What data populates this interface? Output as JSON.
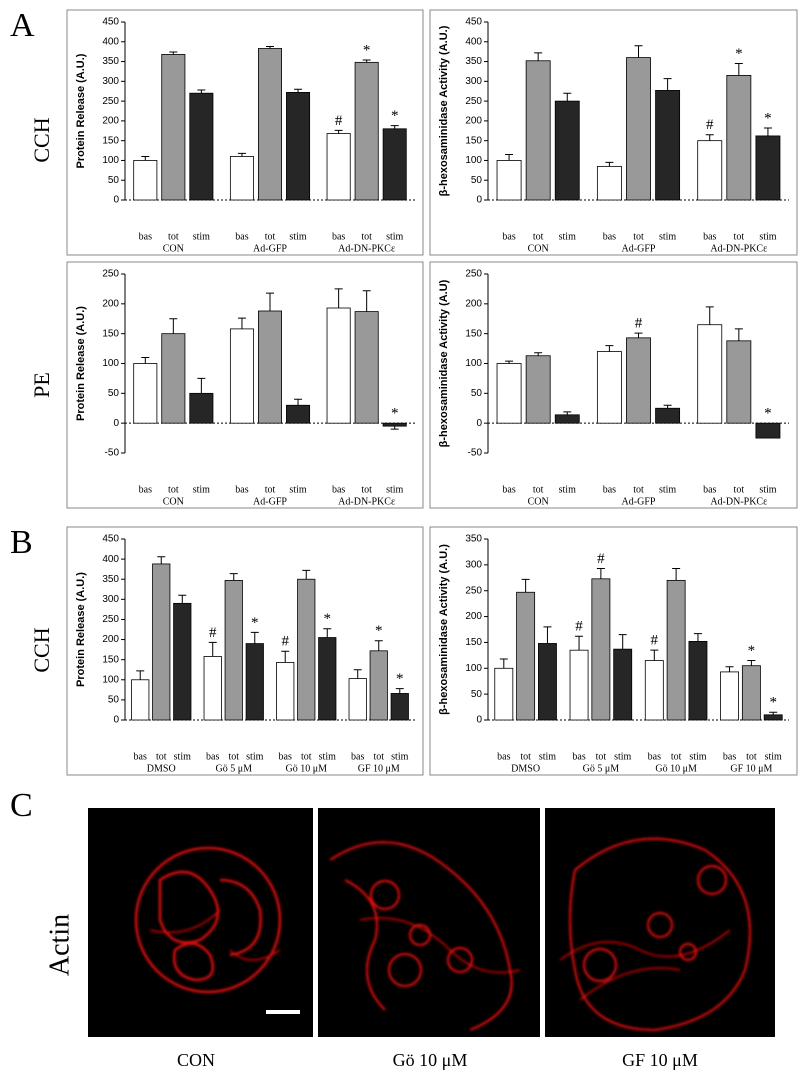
{
  "panels": [
    "A",
    "B",
    "C"
  ],
  "row_labels": [
    "CCH",
    "PE",
    "CCH",
    "Actin"
  ],
  "image_captions": [
    "CON",
    "Gö 10 μM",
    "GF 10 μM"
  ],
  "chart_data": [
    {
      "type": "bar",
      "y_label": "Protein Release  (A.U.)",
      "categories": [
        "CON",
        "Ad-GFP",
        "Ad-DN-PKCε"
      ],
      "ylim": [
        0,
        450
      ],
      "yticks": [
        0,
        50,
        100,
        150,
        200,
        250,
        300,
        350,
        400,
        450
      ],
      "series": [
        {
          "name": "bas",
          "color": "#ffffff",
          "values": [
            100,
            110,
            168
          ],
          "errors": [
            10,
            8,
            8
          ],
          "annotations": [
            null,
            null,
            "#"
          ]
        },
        {
          "name": "tot",
          "color": "#999999",
          "values": [
            368,
            383,
            348
          ],
          "errors": [
            6,
            5,
            6
          ],
          "annotations": [
            null,
            null,
            "*"
          ]
        },
        {
          "name": "stim",
          "color": "#262626",
          "values": [
            270,
            272,
            180
          ],
          "errors": [
            8,
            8,
            8
          ],
          "annotations": [
            null,
            null,
            "*"
          ]
        }
      ]
    },
    {
      "type": "bar",
      "y_label": "β-hexosaminidase Activity (A.U.)",
      "categories": [
        "CON",
        "Ad-GFP",
        "Ad-DN-PKCε"
      ],
      "ylim": [
        0,
        450
      ],
      "yticks": [
        0,
        50,
        100,
        150,
        200,
        250,
        300,
        350,
        400,
        450
      ],
      "series": [
        {
          "name": "bas",
          "color": "#ffffff",
          "values": [
            100,
            85,
            150
          ],
          "errors": [
            15,
            10,
            15
          ],
          "annotations": [
            null,
            null,
            "#"
          ]
        },
        {
          "name": "tot",
          "color": "#999999",
          "values": [
            352,
            360,
            315
          ],
          "errors": [
            20,
            30,
            30
          ],
          "annotations": [
            null,
            null,
            "*"
          ]
        },
        {
          "name": "stim",
          "color": "#262626",
          "values": [
            250,
            277,
            162
          ],
          "errors": [
            20,
            30,
            20
          ],
          "annotations": [
            null,
            null,
            "*"
          ]
        }
      ]
    },
    {
      "type": "bar",
      "y_label": "Protein Release  (A.U.)",
      "categories": [
        "CON",
        "Ad-GFP",
        "Ad-DN-PKCε"
      ],
      "ylim": [
        -50,
        250
      ],
      "yticks": [
        -50,
        0,
        50,
        100,
        150,
        200,
        250
      ],
      "series": [
        {
          "name": "bas",
          "color": "#ffffff",
          "values": [
            100,
            158,
            193
          ],
          "errors": [
            10,
            18,
            32
          ],
          "annotations": [
            null,
            null,
            null
          ]
        },
        {
          "name": "tot",
          "color": "#999999",
          "values": [
            150,
            188,
            187
          ],
          "errors": [
            25,
            30,
            35
          ],
          "annotations": [
            null,
            null,
            null
          ]
        },
        {
          "name": "stim",
          "color": "#262626",
          "values": [
            50,
            30,
            -5
          ],
          "errors": [
            25,
            10,
            5
          ],
          "annotations": [
            null,
            null,
            "*"
          ]
        }
      ]
    },
    {
      "type": "bar",
      "y_label": "β-hexosaminidase Activity (A.U)",
      "categories": [
        "CON",
        "Ad-GFP",
        "Ad-DN-PKCε"
      ],
      "ylim": [
        -50,
        250
      ],
      "yticks": [
        -50,
        0,
        50,
        100,
        150,
        200,
        250
      ],
      "series": [
        {
          "name": "bas",
          "color": "#ffffff",
          "values": [
            100,
            120,
            165
          ],
          "errors": [
            4,
            10,
            30
          ],
          "annotations": [
            null,
            null,
            null
          ]
        },
        {
          "name": "tot",
          "color": "#999999",
          "values": [
            113,
            143,
            138
          ],
          "errors": [
            5,
            8,
            20
          ],
          "annotations": [
            null,
            "#",
            null
          ]
        },
        {
          "name": "stim",
          "color": "#262626",
          "values": [
            14,
            25,
            -25
          ],
          "errors": [
            5,
            5,
            null
          ],
          "annotations": [
            null,
            null,
            "*"
          ]
        }
      ]
    },
    {
      "type": "bar",
      "y_label": "Protein Release  (A.U.)",
      "categories": [
        "DMSO",
        "Gö 5 μM",
        "Gö 10 μM",
        "GF 10 μM"
      ],
      "ylim": [
        0,
        450
      ],
      "yticks": [
        0,
        50,
        100,
        150,
        200,
        250,
        300,
        350,
        400,
        450
      ],
      "series": [
        {
          "name": "bas",
          "color": "#ffffff",
          "values": [
            100,
            158,
            143,
            103
          ],
          "errors": [
            22,
            35,
            28,
            22
          ],
          "annotations": [
            null,
            "#",
            "#",
            null
          ]
        },
        {
          "name": "tot",
          "color": "#999999",
          "values": [
            388,
            347,
            350,
            172
          ],
          "errors": [
            18,
            17,
            22,
            25
          ],
          "annotations": [
            null,
            null,
            null,
            "*"
          ]
        },
        {
          "name": "stim",
          "color": "#262626",
          "values": [
            290,
            190,
            205,
            66
          ],
          "errors": [
            20,
            28,
            22,
            12
          ],
          "annotations": [
            null,
            "*",
            "*",
            "*"
          ]
        }
      ]
    },
    {
      "type": "bar",
      "y_label": "β-hexosaminidase Activity (A.U.)",
      "categories": [
        "DMSO",
        "Gö 5 μM",
        "Gö 10 μM",
        "GF 10 μM"
      ],
      "ylim": [
        0,
        350
      ],
      "yticks": [
        0,
        50,
        100,
        150,
        200,
        250,
        300,
        350
      ],
      "series": [
        {
          "name": "bas",
          "color": "#ffffff",
          "values": [
            100,
            135,
            115,
            93
          ],
          "errors": [
            18,
            27,
            20,
            10
          ],
          "annotations": [
            null,
            "#",
            "#",
            null
          ]
        },
        {
          "name": "tot",
          "color": "#999999",
          "values": [
            247,
            273,
            270,
            105
          ],
          "errors": [
            25,
            20,
            23,
            10
          ],
          "annotations": [
            null,
            "#",
            null,
            "*"
          ]
        },
        {
          "name": "stim",
          "color": "#262626",
          "values": [
            148,
            137,
            152,
            10
          ],
          "errors": [
            32,
            28,
            15,
            5
          ],
          "annotations": [
            null,
            null,
            null,
            "*"
          ]
        }
      ]
    }
  ]
}
